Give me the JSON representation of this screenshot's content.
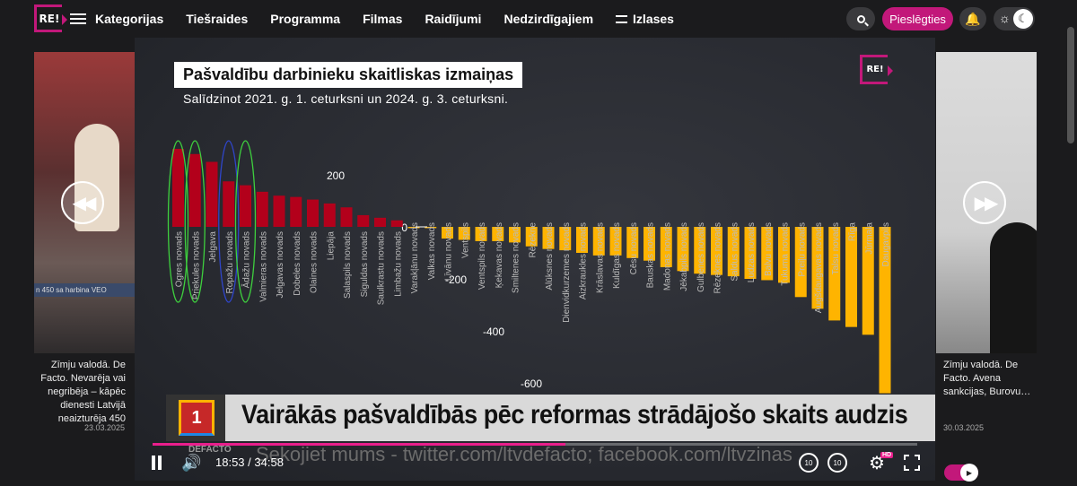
{
  "nav": {
    "logo_text": "RE!",
    "items": [
      "Kategorijas",
      "Tiešraides",
      "Programma",
      "Filmas",
      "Raidījumi",
      "Nedzirdīgajiem",
      "Izlases"
    ],
    "login_label": "Pieslēgties"
  },
  "side_left": {
    "title": "Zīmju valodā. De Facto. Nevarēja vai negribēja – kāpēc dienesti Latvijā neaizturēja 450",
    "date": "23.03.2025",
    "ticker": "n 450 sa harbina  VEO"
  },
  "side_right": {
    "title": "Zīmju valodā. De Facto. Avena sankcijas, Burovu…",
    "date": "30.03.2025"
  },
  "video": {
    "chart_heading": "Pašvaldību darbinieku skaitliskas izmaiņas",
    "chart_subheading": "Salīdzinot 2021. g. 1. ceturksni un 2024. g. 3. ceturksni.",
    "watermark": "RE!",
    "headline": "Vairākās pašvaldībās pēc reformas strādājošo skaits audzis",
    "ticker": "Sekojiet mums - twitter.com/ltvdefacto; facebook.com/ltvzinas",
    "brand": "DEFACTO",
    "logo_number": "1",
    "time_current": "18:53",
    "time_sep": "/",
    "time_total": "34:58",
    "progress": 0.54,
    "hd_badge": "HD",
    "rewind_label": "10",
    "forward_label": "10"
  },
  "chart_data": {
    "type": "bar",
    "title": "Pašvaldību darbinieku skaitliskas izmaiņas",
    "subtitle": "Salīdzinot 2021. g. 1. ceturksni un 2024. g. 3. ceturksni.",
    "ticks": [
      200,
      0,
      -200,
      -400,
      -600
    ],
    "ylim": [
      -640,
      300
    ],
    "grid": false,
    "categories": [
      "Ogres novads",
      "Priekules novads",
      "Jelgava",
      "Ropažu novads",
      "Ādažu novads",
      "Valmieras novads",
      "Jelgavas novads",
      "Dobeles novads",
      "Olaines novads",
      "Liepāja",
      "Salaspils novads",
      "Siguldas novads",
      "Saulkrastu novads",
      "Limbažu novads",
      "Varakļānu novads",
      "Valkas novads",
      "Līvānu novads",
      "Ventspils",
      "Ventspils novads",
      "Ķekavas novads",
      "Smiltenes novads",
      "Rēzekne",
      "Alūksnes novads",
      "Dienvidkurzemes novads",
      "Aizkraukles novads",
      "Krāslavas novads",
      "Kuldīgas novads",
      "Cēsu novads",
      "Bauskas novads",
      "Madonas novads",
      "Jēkabpils novads",
      "Gulbenes novads",
      "Rēzeknes novads",
      "Saldus novads",
      "Ludzas novads",
      "Balvu novads",
      "Tukuma novads",
      "Preiļu novads",
      "Augšdaugavas novads",
      "Talsu novads",
      "Rīga",
      "Jūrmala",
      "Daugavpils"
    ],
    "values": [
      300,
      280,
      250,
      175,
      160,
      135,
      120,
      115,
      105,
      90,
      75,
      45,
      35,
      25,
      -5,
      -5,
      -45,
      -50,
      -55,
      -55,
      -60,
      -75,
      -85,
      -90,
      -100,
      -110,
      -110,
      -120,
      -130,
      -155,
      -170,
      -180,
      -185,
      -190,
      -200,
      -205,
      -215,
      -270,
      -315,
      -360,
      -385,
      -415,
      -640
    ],
    "colors": {
      "positive": "#b3001b",
      "negative": "#ffb400"
    },
    "highlighted_green": [
      "Ogres novads",
      "Priekules novads",
      "Ādažu novads"
    ],
    "highlighted_blue": [
      "Ropažu novads"
    ]
  }
}
